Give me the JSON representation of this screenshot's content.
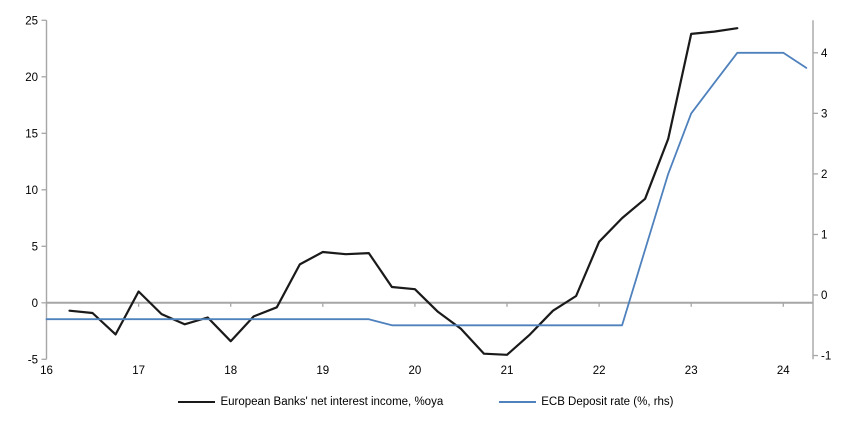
{
  "chart_data": {
    "type": "line",
    "title": "",
    "xlabel": "",
    "ylabel_left": "",
    "ylabel_right": "",
    "x_axis": {
      "ticks": [
        16,
        17,
        18,
        19,
        20,
        21,
        22,
        23,
        24
      ],
      "range": [
        16,
        24.32
      ]
    },
    "left_axis": {
      "ticks": [
        25,
        20,
        15,
        10,
        5,
        0,
        -5
      ],
      "range": [
        -5,
        25
      ]
    },
    "right_axis": {
      "ticks": [
        4,
        3,
        2,
        1,
        0,
        -1
      ],
      "range": [
        -1.06,
        4.54
      ]
    },
    "grid": "zero-line-only",
    "legend_position": "bottom-center",
    "colors": {
      "axis_gray": "#a6a6a6",
      "series_black": "#1a1a1a",
      "series_blue": "#4f81bd"
    },
    "series": [
      {
        "name": "European Banks' net interest income, %oya",
        "axis": "left",
        "color": "#1a1a1a",
        "width": 2.2,
        "x": [
          16.25,
          16.5,
          16.75,
          17,
          17.25,
          17.5,
          17.75,
          18,
          18.25,
          18.5,
          18.75,
          19,
          19.25,
          19.5,
          19.75,
          20,
          20.25,
          20.5,
          20.75,
          21,
          21.25,
          21.5,
          21.75,
          22,
          22.25,
          22.5,
          22.75,
          23,
          23.25,
          23.5
        ],
        "values": [
          -0.7,
          -0.9,
          -2.8,
          1.0,
          -1.0,
          -1.9,
          -1.3,
          -3.4,
          -1.2,
          -0.4,
          3.4,
          4.5,
          4.3,
          4.4,
          1.4,
          1.2,
          -0.8,
          -2.3,
          -4.5,
          -4.6,
          -2.8,
          -0.7,
          0.6,
          5.4,
          7.5,
          9.2,
          14.5,
          23.8,
          24.0,
          24.3
        ]
      },
      {
        "name": "ECB Deposit rate (%, rhs)",
        "axis": "right",
        "color": "#4f81bd",
        "width": 1.8,
        "x": [
          16,
          16.25,
          16.5,
          16.75,
          17,
          17.25,
          17.5,
          17.75,
          18,
          18.25,
          18.5,
          18.75,
          19,
          19.25,
          19.5,
          19.75,
          20,
          20.25,
          20.5,
          20.75,
          21,
          21.25,
          21.5,
          21.75,
          22,
          22.25,
          22.5,
          22.75,
          23,
          23.25,
          23.5,
          23.75,
          24,
          24.25
        ],
        "values": [
          -0.4,
          -0.4,
          -0.4,
          -0.4,
          -0.4,
          -0.4,
          -0.4,
          -0.4,
          -0.4,
          -0.4,
          -0.4,
          -0.4,
          -0.4,
          -0.4,
          -0.4,
          -0.5,
          -0.5,
          -0.5,
          -0.5,
          -0.5,
          -0.5,
          -0.5,
          -0.5,
          -0.5,
          -0.5,
          -0.5,
          0.75,
          2.0,
          3.0,
          3.5,
          4.0,
          4.0,
          4.0,
          3.75
        ]
      }
    ]
  }
}
